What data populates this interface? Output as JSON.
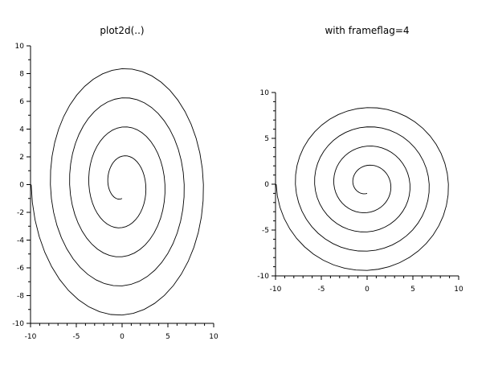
{
  "chart_data": [
    {
      "type": "line",
      "title": "plot2d(..)",
      "xlim": [
        -10,
        10
      ],
      "ylim": [
        -10,
        10
      ],
      "xticks": [
        "-10",
        "-5",
        "0",
        "5",
        "10"
      ],
      "yticks": [
        "-10",
        "-8",
        "-6",
        "-4",
        "-2",
        "0",
        "2",
        "4",
        "6",
        "8",
        "10"
      ],
      "grid": false,
      "line_color": "#000000",
      "x": [
        0,
        -0.89,
        -1.53,
        -1.26,
        0,
        1.64,
        2.58,
        2.01,
        0,
        -2.38,
        -3.63,
        -2.75,
        0,
        3.12,
        4.68,
        3.49,
        0,
        -3.86,
        -5.73,
        -4.23,
        0,
        4.6,
        6.78,
        4.98,
        0,
        -5.35,
        -7.83,
        -5.72,
        0,
        6.09,
        8.88,
        6.46,
        0,
        -6.83,
        -9.93
      ],
      "y": [
        -1,
        -0.89,
        0,
        1.26,
        2.05,
        1.64,
        0,
        -2.01,
        -3.1,
        -2.38,
        0,
        2.75,
        4.15,
        3.12,
        0,
        -3.49,
        -5.2,
        -3.86,
        0,
        4.23,
        6.25,
        4.6,
        0,
        -4.98,
        -7.3,
        -5.35,
        0,
        5.72,
        8.35,
        6.09,
        0,
        -6.46,
        -9.4,
        -6.83,
        0
      ]
    },
    {
      "type": "line",
      "title": "with frameflag=4",
      "xlim": [
        -10,
        10
      ],
      "ylim": [
        -10,
        10
      ],
      "isoview": true,
      "xticks": [
        "-10",
        "-5",
        "0",
        "5",
        "10"
      ],
      "yticks": [
        "-10",
        "-5",
        "0",
        "5",
        "10"
      ],
      "grid": false,
      "line_color": "#000000",
      "x": [
        0,
        -0.89,
        -1.53,
        -1.26,
        0,
        1.64,
        2.58,
        2.01,
        0,
        -2.38,
        -3.63,
        -2.75,
        0,
        3.12,
        4.68,
        3.49,
        0,
        -3.86,
        -5.73,
        -4.23,
        0,
        4.6,
        6.78,
        4.98,
        0,
        -5.35,
        -7.83,
        -5.72,
        0,
        6.09,
        8.88,
        6.46,
        0,
        -6.83,
        -9.93
      ],
      "y": [
        -1,
        -0.89,
        0,
        1.26,
        2.05,
        1.64,
        0,
        -2.01,
        -3.1,
        -2.38,
        0,
        2.75,
        4.15,
        3.12,
        0,
        -3.49,
        -5.2,
        -3.86,
        0,
        4.23,
        6.25,
        4.6,
        0,
        -4.98,
        -7.3,
        -5.35,
        0,
        5.72,
        8.35,
        6.09,
        0,
        -6.46,
        -9.4,
        -6.83,
        0
      ]
    }
  ]
}
